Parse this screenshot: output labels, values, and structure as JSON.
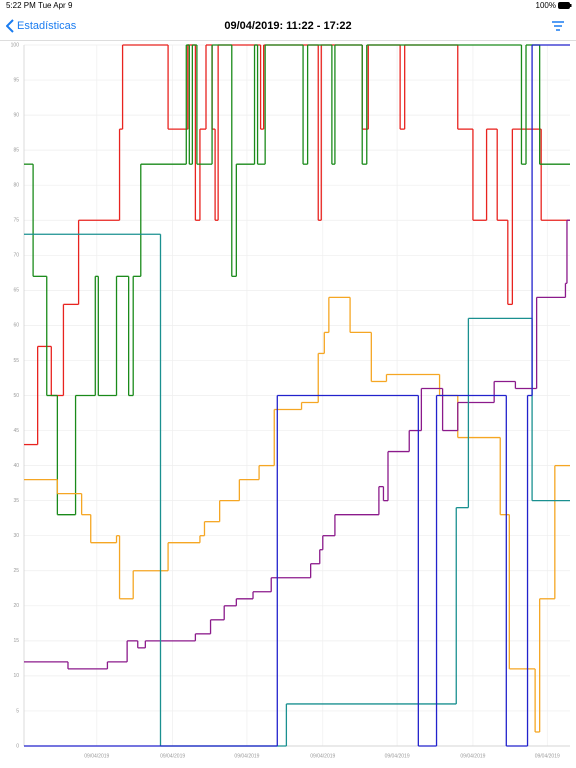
{
  "status": {
    "time": "5:22 PM",
    "date": "Tue Apr 9",
    "battery": "100%"
  },
  "nav": {
    "back": "Estadísticas",
    "title": "09/04/2019: 11:22 - 17:22"
  },
  "chart_data": {
    "type": "line",
    "step": "post",
    "grid": true,
    "xlim": [
      0,
      360
    ],
    "ylim": [
      0,
      100
    ],
    "xticks": [
      {
        "value": 48,
        "label": "09/04/2019"
      },
      {
        "value": 98,
        "label": "09/04/2019"
      },
      {
        "value": 147,
        "label": "09/04/2019"
      },
      {
        "value": 197,
        "label": "09/04/2019"
      },
      {
        "value": 246,
        "label": "09/04/2019"
      },
      {
        "value": 296,
        "label": "09/04/2019"
      },
      {
        "value": 345,
        "label": "09/04/2019"
      }
    ],
    "yticks": [
      0,
      5,
      10,
      15,
      20,
      25,
      30,
      35,
      40,
      45,
      50,
      55,
      60,
      65,
      70,
      75,
      80,
      85,
      90,
      95,
      100
    ],
    "series": [
      {
        "color": "#e8231f",
        "x": [
          0,
          9,
          18,
          26,
          36,
          63,
          65,
          95,
          108,
          113,
          116,
          120,
          124,
          126,
          128,
          156,
          158,
          194,
          196,
          223,
          227,
          248,
          251,
          286,
          296,
          305,
          312,
          319,
          322,
          341,
          360
        ],
        "values": [
          43,
          57,
          50,
          63,
          75,
          88,
          100,
          88,
          100,
          75,
          88,
          100,
          88,
          75,
          100,
          88,
          100,
          75,
          100,
          88,
          100,
          88,
          100,
          88,
          75,
          88,
          75,
          63,
          88,
          75,
          75
        ]
      },
      {
        "color": "#1a8a1a",
        "x": [
          0,
          6,
          15,
          22,
          34,
          47,
          49,
          61,
          69,
          72,
          77,
          107,
          109,
          111,
          114,
          124,
          137,
          140,
          152,
          154,
          159,
          184,
          187,
          203,
          205,
          223,
          226,
          328,
          331,
          340,
          360
        ],
        "values": [
          83,
          67,
          50,
          33,
          50,
          67,
          50,
          67,
          50,
          67,
          83,
          100,
          83,
          100,
          83,
          100,
          67,
          83,
          100,
          83,
          100,
          83,
          100,
          83,
          100,
          83,
          100,
          83,
          100,
          83,
          83
        ]
      },
      {
        "color": "#f5a623",
        "x": [
          0,
          22,
          38,
          44,
          61,
          63,
          72,
          95,
          116,
          119,
          129,
          142,
          155,
          165,
          183,
          194,
          198,
          201,
          215,
          229,
          239,
          274,
          286,
          314,
          320,
          337,
          340,
          350,
          360
        ],
        "values": [
          38,
          36,
          33,
          29,
          30,
          21,
          25,
          29,
          30,
          32,
          35,
          38,
          40,
          48,
          49,
          56,
          59,
          64,
          59,
          52,
          53,
          50,
          44,
          33,
          11,
          2,
          21,
          40,
          40
        ]
      },
      {
        "color": "#8b1a8b",
        "x": [
          0,
          29,
          55,
          68,
          75,
          80,
          113,
          123,
          132,
          140,
          151,
          163,
          189,
          195,
          197,
          205,
          234,
          237,
          240,
          254,
          262,
          276,
          286,
          310,
          324,
          338,
          357,
          358,
          360
        ],
        "values": [
          12,
          11,
          12,
          15,
          14,
          15,
          16,
          18,
          20,
          21,
          22,
          24,
          26,
          28,
          30,
          33,
          37,
          35,
          42,
          45,
          51,
          45,
          49,
          52,
          51,
          64,
          66,
          75,
          75
        ]
      },
      {
        "color": "#1a9090",
        "x": [
          0,
          90,
          173,
          285,
          293,
          335,
          360
        ],
        "values": [
          73,
          0,
          6,
          34,
          61,
          35,
          35
        ]
      },
      {
        "color": "#2222cc",
        "x": [
          0,
          167,
          260,
          272,
          318,
          332,
          335,
          360
        ],
        "values": [
          0,
          50,
          0,
          50,
          0,
          50,
          100,
          100
        ]
      }
    ]
  }
}
